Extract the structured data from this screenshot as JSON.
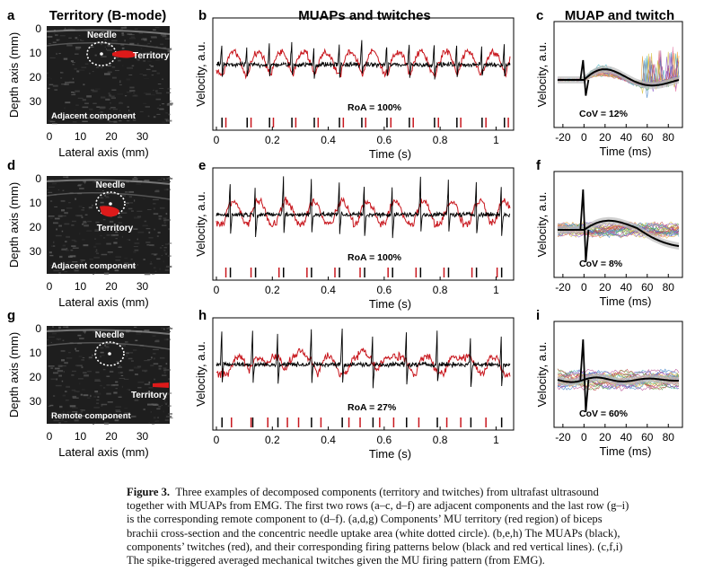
{
  "figure": {
    "rows": [
      {
        "us": {
          "letter": "a",
          "title": "Territory (B-mode)",
          "needle_label": "Needle",
          "territory_label": "Territory",
          "component_label": "Adjacent component"
        },
        "emg": {
          "letter": "b",
          "title": "MUAPs and twitches",
          "roa": "RoA = 100%"
        },
        "sta": {
          "letter": "c",
          "title": "MUAP and twitch",
          "cov": "CoV = 12%"
        }
      },
      {
        "us": {
          "letter": "d",
          "title": "",
          "needle_label": "Needle",
          "territory_label": "Territory",
          "component_label": "Adjacent component"
        },
        "emg": {
          "letter": "e",
          "title": "",
          "roa": "RoA = 100%"
        },
        "sta": {
          "letter": "f",
          "title": "",
          "cov": "CoV = 8%"
        }
      },
      {
        "us": {
          "letter": "g",
          "title": "",
          "needle_label": "Needle",
          "territory_label": "Territory",
          "component_label": "Remote component"
        },
        "emg": {
          "letter": "h",
          "title": "",
          "roa": "RoA = 27%"
        },
        "sta": {
          "letter": "i",
          "title": "",
          "cov": "CoV = 60%"
        }
      }
    ],
    "axes": {
      "depth_label": "Depth axis (mm)",
      "lateral_label": "Lateral axis (mm)",
      "depth_ticks": [
        "0",
        "10",
        "20",
        "30"
      ],
      "lateral_ticks": [
        "0",
        "10",
        "20",
        "30"
      ],
      "velocity_label": "Velocity, a.u.",
      "time_s_label": "Time (s)",
      "time_s_ticks": [
        "0",
        "0.2",
        "0.4",
        "0.6",
        "0.8",
        "1"
      ],
      "time_ms_label": "Time (ms)",
      "time_ms_ticks": [
        "-20",
        "0",
        "20",
        "40",
        "60",
        "80"
      ]
    },
    "colors": {
      "twitch": "#c8161d",
      "muap": "#000000",
      "territory": "#dd1a1a",
      "us_bg": "#1e1e1e"
    }
  },
  "chart_data": [
    {
      "type": "line",
      "panel": "b",
      "title": "MUAPs and twitches",
      "xlabel": "Time (s)",
      "ylabel": "Velocity, a.u.",
      "xlim": [
        0,
        1.05
      ],
      "series": [
        {
          "name": "MUAPs",
          "color": "black"
        },
        {
          "name": "Twitches",
          "color": "red"
        }
      ],
      "black_firings_s": [
        0.02,
        0.11,
        0.19,
        0.27,
        0.35,
        0.44,
        0.52,
        0.61,
        0.69,
        0.78,
        0.86,
        0.95,
        1.03
      ],
      "red_firings_s": [
        0.03,
        0.12,
        0.2,
        0.28,
        0.36,
        0.45,
        0.53,
        0.62,
        0.7,
        0.79,
        0.87,
        0.96,
        1.04
      ],
      "annotation": "RoA = 100%"
    },
    {
      "type": "line",
      "panel": "e",
      "xlabel": "Time (s)",
      "ylabel": "Velocity, a.u.",
      "xlim": [
        0,
        1.05
      ],
      "series": [
        {
          "name": "MUAPs",
          "color": "black"
        },
        {
          "name": "Twitches",
          "color": "red"
        }
      ],
      "black_firings_s": [
        0.05,
        0.14,
        0.24,
        0.34,
        0.44,
        0.53,
        0.63,
        0.73,
        0.83,
        0.93,
        1.02
      ],
      "red_firings_s": [
        0.03,
        0.12,
        0.22,
        0.32,
        0.42,
        0.51,
        0.61,
        0.71,
        0.81,
        0.91,
        1.0
      ],
      "annotation": "RoA = 100%"
    },
    {
      "type": "line",
      "panel": "h",
      "xlabel": "Time (s)",
      "ylabel": "Velocity, a.u.",
      "xlim": [
        0,
        1.05
      ],
      "series": [
        {
          "name": "MUAPs",
          "color": "black"
        },
        {
          "name": "Twitches",
          "color": "red"
        }
      ],
      "black_firings_s": [
        0.02,
        0.13,
        0.22,
        0.34,
        0.45,
        0.56,
        0.68,
        0.79,
        0.91,
        1.02
      ],
      "red_firings_s": [
        0.05,
        0.12,
        0.18,
        0.25,
        0.29,
        0.37,
        0.47,
        0.51,
        0.58,
        0.63,
        0.72,
        0.82,
        0.87,
        0.96
      ],
      "annotation": "RoA = 27%"
    },
    {
      "type": "line",
      "panel": "c",
      "title": "MUAP and twitch",
      "xlabel": "Time (ms)",
      "ylabel": "Velocity, a.u.",
      "xlim": [
        -25,
        90
      ],
      "annotation": "CoV = 12%"
    },
    {
      "type": "line",
      "panel": "f",
      "xlabel": "Time (ms)",
      "ylabel": "Velocity, a.u.",
      "xlim": [
        -25,
        90
      ],
      "annotation": "CoV = 8%"
    },
    {
      "type": "line",
      "panel": "i",
      "xlabel": "Time (ms)",
      "ylabel": "Velocity, a.u.",
      "xlim": [
        -25,
        90
      ],
      "annotation": "CoV = 60%"
    }
  ],
  "caption": {
    "label": "Figure 3.",
    "lines": [
      "Three examples of decomposed components (territory and twitches) from ultrafast ultrasound",
      "together with MUAPs from EMG. The first two rows (a–c, d–f) are adjacent components and the last row (g–i)",
      "is the corresponding remote component to (d–f). (a,d,g) Components’ MU territory (red region) of biceps",
      "brachii cross-section and the concentric needle uptake area (white dotted circle). (b,e,h) The MUAPs (black),",
      "components’ twitches (red), and their corresponding firing patterns below (black and red vertical lines). (c,f,i)",
      "The spike-triggered averaged mechanical twitches given the MU firing pattern (from EMG)."
    ]
  }
}
